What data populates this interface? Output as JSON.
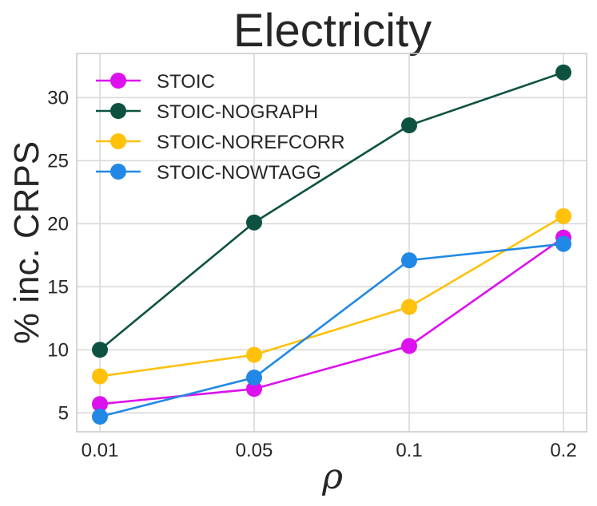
{
  "chart_data": {
    "type": "line",
    "title": "Electricity",
    "xlabel": "ρ",
    "ylabel": "% inc. CRPS",
    "categories": [
      "0.01",
      "0.05",
      "0.1",
      "0.2"
    ],
    "ylim": [
      3.5,
      33.5
    ],
    "yticks": [
      5,
      10,
      15,
      20,
      25,
      30
    ],
    "grid": true,
    "legend_position": "top-left",
    "series": [
      {
        "name": "STOIC",
        "color": "#dd11ee",
        "values": [
          5.7,
          6.9,
          10.3,
          18.9
        ]
      },
      {
        "name": "STOIC-NOGRAPH",
        "color": "#0d5240",
        "values": [
          10.0,
          20.1,
          27.8,
          32.0
        ]
      },
      {
        "name": "STOIC-NOREFCORR",
        "color": "#ffc10a",
        "values": [
          7.9,
          9.6,
          13.4,
          20.6
        ]
      },
      {
        "name": "STOIC-NOWTAGG",
        "color": "#2188e6",
        "values": [
          4.7,
          7.8,
          17.1,
          18.4
        ]
      }
    ]
  }
}
